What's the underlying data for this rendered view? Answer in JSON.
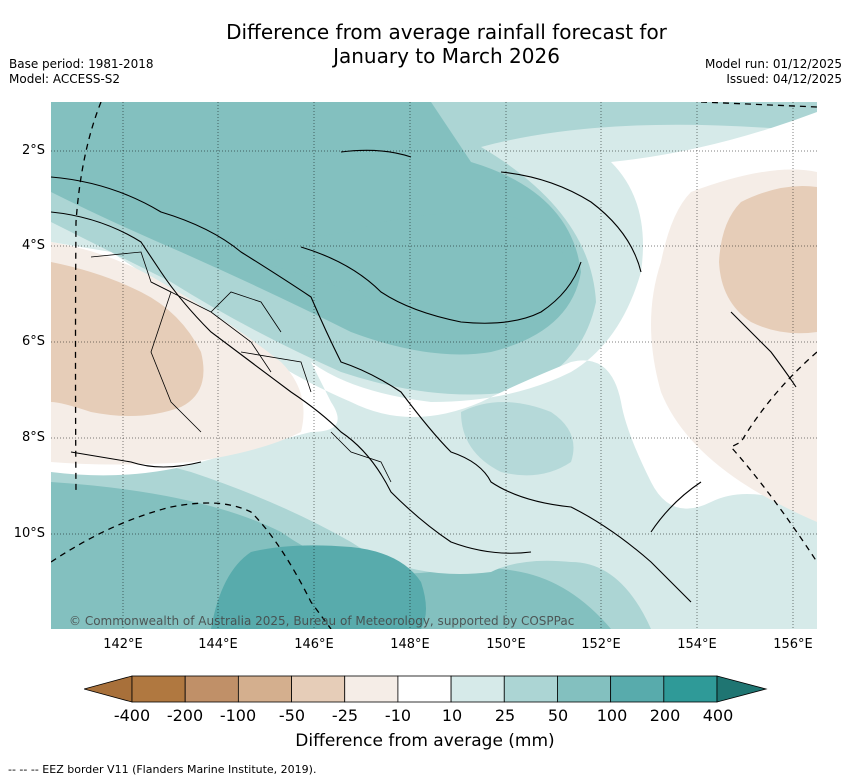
{
  "title_line1": "Difference from average rainfall forecast for",
  "title_line2": "January to March 2026",
  "meta_left": {
    "base_period": "Base period: 1981-2018",
    "model": "Model: ACCESS-S2"
  },
  "meta_right": {
    "model_run": "Model run: 01/12/2025",
    "issued": "Issued: 04/12/2025"
  },
  "y_ticks": [
    "2°S",
    "4°S",
    "6°S",
    "8°S",
    "10°S"
  ],
  "x_ticks": [
    "142°E",
    "144°E",
    "146°E",
    "148°E",
    "150°E",
    "152°E",
    "154°E",
    "156°E"
  ],
  "copyright": "© Commonwealth of Australia 2025, Bureau of Meteorology, supported by COSPPac",
  "colorbar": {
    "labels": [
      "-400",
      "-200",
      "-100",
      "-50",
      "-25",
      "-10",
      "10",
      "25",
      "50",
      "100",
      "200",
      "400"
    ],
    "colors": [
      "#a8703a",
      "#b07840",
      "#c09068",
      "#d4af8e",
      "#e6cdb8",
      "#f5ede7",
      "#ffffff",
      "#d6eae9",
      "#acd5d4",
      "#83c0bf",
      "#58abac",
      "#2f9a98",
      "#1f7572"
    ],
    "title": "Difference from average (mm)"
  },
  "legend_text": "--  --  -- EEZ border V11 (Flanders Marine Institute, 2019)."
}
